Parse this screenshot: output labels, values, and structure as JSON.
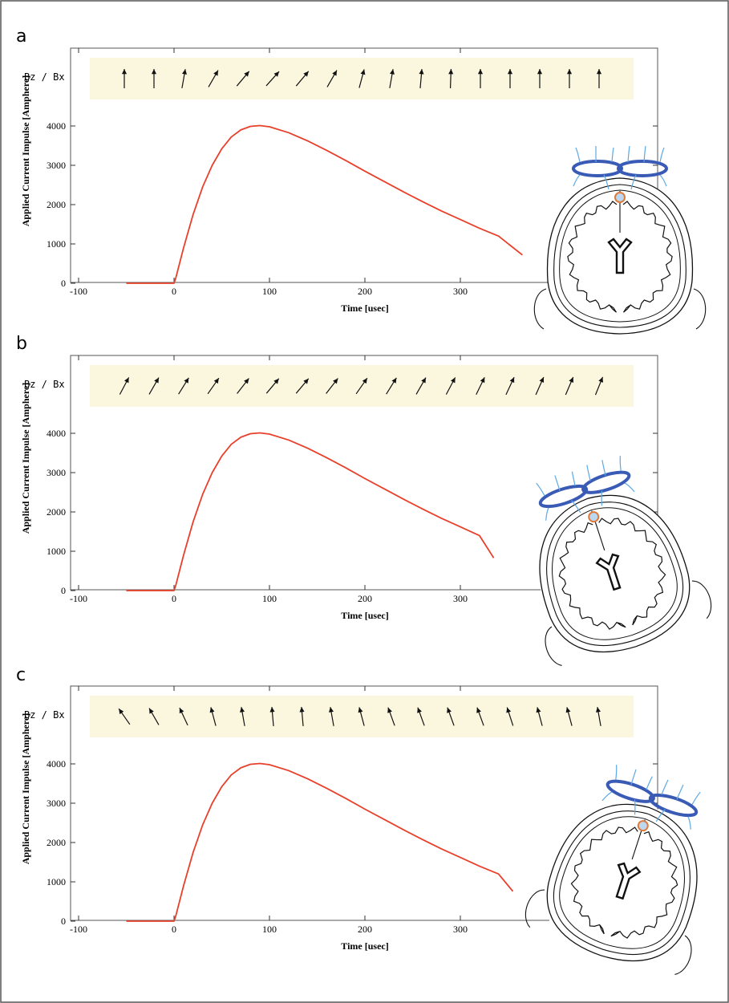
{
  "figure": {
    "frame_color": "#555555",
    "curve_color": "#e8402a",
    "band_color": "#fbf7df",
    "coil_color": "#3a5bb5",
    "field_color": "#5aa9e6",
    "target_color": "#e07a3a"
  },
  "chart_data": [
    {
      "type": "line",
      "panel_label": "a",
      "xlabel": "Time [usec]",
      "ylabel": "Applied Current Impulse [Amphere]",
      "band_label": "Bz / Bx",
      "xlim": [
        -100,
        370
      ],
      "ylim": [
        0,
        4000
      ],
      "x_ticks": [
        -100,
        0,
        100,
        200,
        300
      ],
      "y_ticks": [
        0,
        1000,
        2000,
        3000,
        4000
      ],
      "x_tick_labels": [
        "-100",
        "0",
        "100",
        "200",
        "300"
      ],
      "y_tick_labels": [
        "0",
        "1000",
        "2000",
        "3000",
        "4000"
      ],
      "grid": false,
      "series": [
        {
          "x": [
            -50,
            0,
            2,
            10,
            20,
            30,
            40,
            50,
            60,
            70,
            80,
            90,
            100,
            120,
            140,
            160,
            180,
            200,
            220,
            240,
            260,
            280,
            300,
            320,
            340,
            365
          ],
          "y": [
            0,
            0,
            150,
            900,
            1750,
            2450,
            3000,
            3420,
            3720,
            3900,
            3990,
            4010,
            3980,
            3830,
            3620,
            3380,
            3120,
            2850,
            2590,
            2330,
            2080,
            1840,
            1620,
            1400,
            1200,
            720
          ]
        }
      ],
      "field_arrows_deg": [
        90,
        90,
        80,
        60,
        50,
        48,
        50,
        60,
        75,
        80,
        85,
        88,
        90,
        90,
        90,
        90,
        90
      ]
    },
    {
      "type": "line",
      "panel_label": "b",
      "xlabel": "Time [usec]",
      "ylabel": "Applied Current Impulse [Amphere]",
      "band_label": "Bz / Bx",
      "xlim": [
        -100,
        340
      ],
      "ylim": [
        0,
        4000
      ],
      "x_ticks": [
        -100,
        0,
        100,
        200,
        300
      ],
      "y_ticks": [
        0,
        1000,
        2000,
        3000,
        4000
      ],
      "x_tick_labels": [
        "-100",
        "0",
        "100",
        "200",
        "300"
      ],
      "y_tick_labels": [
        "0",
        "1000",
        "2000",
        "3000",
        "4000"
      ],
      "grid": false,
      "series": [
        {
          "x": [
            -50,
            0,
            2,
            10,
            20,
            30,
            40,
            50,
            60,
            70,
            80,
            90,
            100,
            120,
            140,
            160,
            180,
            200,
            220,
            240,
            260,
            280,
            300,
            320,
            335
          ],
          "y": [
            0,
            0,
            150,
            900,
            1750,
            2450,
            3000,
            3420,
            3720,
            3900,
            3990,
            4010,
            3980,
            3830,
            3620,
            3380,
            3120,
            2850,
            2590,
            2330,
            2080,
            1840,
            1620,
            1400,
            830
          ]
        }
      ],
      "field_arrows_deg": [
        62,
        60,
        58,
        55,
        52,
        50,
        50,
        52,
        55,
        58,
        60,
        62,
        64,
        65,
        66,
        67,
        68
      ]
    },
    {
      "type": "line",
      "panel_label": "c",
      "xlabel": "Time [usec]",
      "ylabel": "Applied Current Impulse [Amphere]",
      "band_label": "Bz / Bx",
      "xlim": [
        -100,
        370
      ],
      "ylim": [
        0,
        4000
      ],
      "x_ticks": [
        -100,
        0,
        100,
        200,
        300
      ],
      "y_ticks": [
        0,
        1000,
        2000,
        3000,
        4000
      ],
      "x_tick_labels": [
        "-100",
        "0",
        "100",
        "200",
        "300"
      ],
      "y_tick_labels": [
        "0",
        "1000",
        "2000",
        "3000",
        "4000"
      ],
      "grid": false,
      "series": [
        {
          "x": [
            -50,
            0,
            2,
            10,
            20,
            30,
            40,
            50,
            60,
            70,
            80,
            90,
            100,
            120,
            140,
            160,
            180,
            200,
            220,
            240,
            260,
            280,
            300,
            320,
            340,
            355
          ],
          "y": [
            0,
            0,
            150,
            900,
            1750,
            2450,
            3000,
            3420,
            3720,
            3900,
            3990,
            4010,
            3980,
            3830,
            3620,
            3380,
            3120,
            2850,
            2590,
            2330,
            2080,
            1840,
            1620,
            1400,
            1200,
            760
          ]
        }
      ],
      "field_arrows_deg": [
        125,
        120,
        115,
        105,
        100,
        95,
        95,
        100,
        105,
        110,
        110,
        110,
        110,
        108,
        105,
        105,
        100
      ]
    }
  ]
}
